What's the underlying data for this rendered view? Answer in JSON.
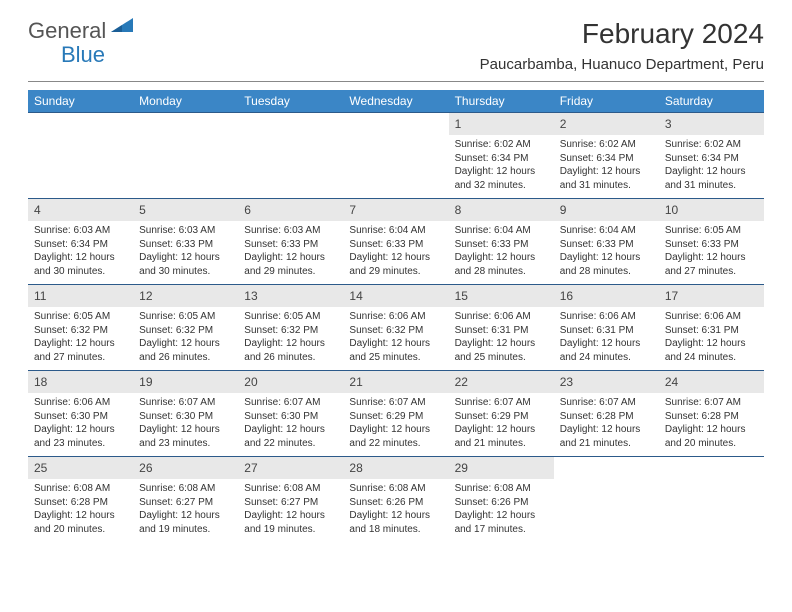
{
  "brand": {
    "part1": "General",
    "part2": "Blue"
  },
  "title": "February 2024",
  "subtitle": "Paucarbamba, Huanuco Department, Peru",
  "colors": {
    "header_bg": "#3b86c6",
    "header_text": "#ffffff",
    "daynum_bg": "#e8e8e8",
    "row_border": "#2c5a8a",
    "brand_blue": "#2879b8",
    "text": "#333333"
  },
  "day_labels": [
    "Sunday",
    "Monday",
    "Tuesday",
    "Wednesday",
    "Thursday",
    "Friday",
    "Saturday"
  ],
  "weeks": [
    [
      {
        "n": "",
        "sr": "",
        "ss": "",
        "dl": ""
      },
      {
        "n": "",
        "sr": "",
        "ss": "",
        "dl": ""
      },
      {
        "n": "",
        "sr": "",
        "ss": "",
        "dl": ""
      },
      {
        "n": "",
        "sr": "",
        "ss": "",
        "dl": ""
      },
      {
        "n": "1",
        "sr": "Sunrise: 6:02 AM",
        "ss": "Sunset: 6:34 PM",
        "dl": "Daylight: 12 hours and 32 minutes."
      },
      {
        "n": "2",
        "sr": "Sunrise: 6:02 AM",
        "ss": "Sunset: 6:34 PM",
        "dl": "Daylight: 12 hours and 31 minutes."
      },
      {
        "n": "3",
        "sr": "Sunrise: 6:02 AM",
        "ss": "Sunset: 6:34 PM",
        "dl": "Daylight: 12 hours and 31 minutes."
      }
    ],
    [
      {
        "n": "4",
        "sr": "Sunrise: 6:03 AM",
        "ss": "Sunset: 6:34 PM",
        "dl": "Daylight: 12 hours and 30 minutes."
      },
      {
        "n": "5",
        "sr": "Sunrise: 6:03 AM",
        "ss": "Sunset: 6:33 PM",
        "dl": "Daylight: 12 hours and 30 minutes."
      },
      {
        "n": "6",
        "sr": "Sunrise: 6:03 AM",
        "ss": "Sunset: 6:33 PM",
        "dl": "Daylight: 12 hours and 29 minutes."
      },
      {
        "n": "7",
        "sr": "Sunrise: 6:04 AM",
        "ss": "Sunset: 6:33 PM",
        "dl": "Daylight: 12 hours and 29 minutes."
      },
      {
        "n": "8",
        "sr": "Sunrise: 6:04 AM",
        "ss": "Sunset: 6:33 PM",
        "dl": "Daylight: 12 hours and 28 minutes."
      },
      {
        "n": "9",
        "sr": "Sunrise: 6:04 AM",
        "ss": "Sunset: 6:33 PM",
        "dl": "Daylight: 12 hours and 28 minutes."
      },
      {
        "n": "10",
        "sr": "Sunrise: 6:05 AM",
        "ss": "Sunset: 6:33 PM",
        "dl": "Daylight: 12 hours and 27 minutes."
      }
    ],
    [
      {
        "n": "11",
        "sr": "Sunrise: 6:05 AM",
        "ss": "Sunset: 6:32 PM",
        "dl": "Daylight: 12 hours and 27 minutes."
      },
      {
        "n": "12",
        "sr": "Sunrise: 6:05 AM",
        "ss": "Sunset: 6:32 PM",
        "dl": "Daylight: 12 hours and 26 minutes."
      },
      {
        "n": "13",
        "sr": "Sunrise: 6:05 AM",
        "ss": "Sunset: 6:32 PM",
        "dl": "Daylight: 12 hours and 26 minutes."
      },
      {
        "n": "14",
        "sr": "Sunrise: 6:06 AM",
        "ss": "Sunset: 6:32 PM",
        "dl": "Daylight: 12 hours and 25 minutes."
      },
      {
        "n": "15",
        "sr": "Sunrise: 6:06 AM",
        "ss": "Sunset: 6:31 PM",
        "dl": "Daylight: 12 hours and 25 minutes."
      },
      {
        "n": "16",
        "sr": "Sunrise: 6:06 AM",
        "ss": "Sunset: 6:31 PM",
        "dl": "Daylight: 12 hours and 24 minutes."
      },
      {
        "n": "17",
        "sr": "Sunrise: 6:06 AM",
        "ss": "Sunset: 6:31 PM",
        "dl": "Daylight: 12 hours and 24 minutes."
      }
    ],
    [
      {
        "n": "18",
        "sr": "Sunrise: 6:06 AM",
        "ss": "Sunset: 6:30 PM",
        "dl": "Daylight: 12 hours and 23 minutes."
      },
      {
        "n": "19",
        "sr": "Sunrise: 6:07 AM",
        "ss": "Sunset: 6:30 PM",
        "dl": "Daylight: 12 hours and 23 minutes."
      },
      {
        "n": "20",
        "sr": "Sunrise: 6:07 AM",
        "ss": "Sunset: 6:30 PM",
        "dl": "Daylight: 12 hours and 22 minutes."
      },
      {
        "n": "21",
        "sr": "Sunrise: 6:07 AM",
        "ss": "Sunset: 6:29 PM",
        "dl": "Daylight: 12 hours and 22 minutes."
      },
      {
        "n": "22",
        "sr": "Sunrise: 6:07 AM",
        "ss": "Sunset: 6:29 PM",
        "dl": "Daylight: 12 hours and 21 minutes."
      },
      {
        "n": "23",
        "sr": "Sunrise: 6:07 AM",
        "ss": "Sunset: 6:28 PM",
        "dl": "Daylight: 12 hours and 21 minutes."
      },
      {
        "n": "24",
        "sr": "Sunrise: 6:07 AM",
        "ss": "Sunset: 6:28 PM",
        "dl": "Daylight: 12 hours and 20 minutes."
      }
    ],
    [
      {
        "n": "25",
        "sr": "Sunrise: 6:08 AM",
        "ss": "Sunset: 6:28 PM",
        "dl": "Daylight: 12 hours and 20 minutes."
      },
      {
        "n": "26",
        "sr": "Sunrise: 6:08 AM",
        "ss": "Sunset: 6:27 PM",
        "dl": "Daylight: 12 hours and 19 minutes."
      },
      {
        "n": "27",
        "sr": "Sunrise: 6:08 AM",
        "ss": "Sunset: 6:27 PM",
        "dl": "Daylight: 12 hours and 19 minutes."
      },
      {
        "n": "28",
        "sr": "Sunrise: 6:08 AM",
        "ss": "Sunset: 6:26 PM",
        "dl": "Daylight: 12 hours and 18 minutes."
      },
      {
        "n": "29",
        "sr": "Sunrise: 6:08 AM",
        "ss": "Sunset: 6:26 PM",
        "dl": "Daylight: 12 hours and 17 minutes."
      },
      {
        "n": "",
        "sr": "",
        "ss": "",
        "dl": ""
      },
      {
        "n": "",
        "sr": "",
        "ss": "",
        "dl": ""
      }
    ]
  ]
}
